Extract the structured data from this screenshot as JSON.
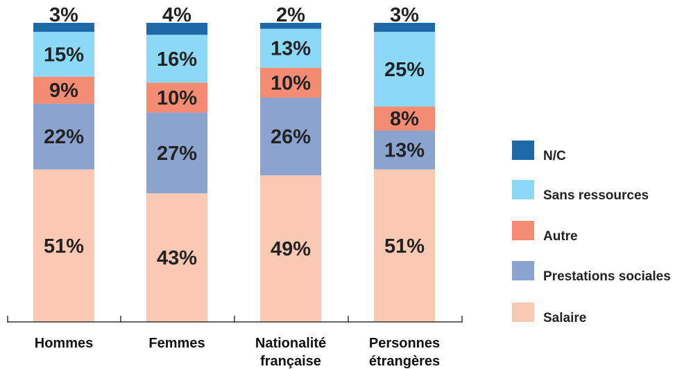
{
  "chart_data": {
    "type": "bar",
    "stacked": true,
    "percent": true,
    "categories": [
      [
        "Hommes"
      ],
      [
        "Femmes"
      ],
      [
        "Nationalité",
        "française"
      ],
      [
        "Personnes",
        "étrangères"
      ]
    ],
    "series": [
      {
        "name": "Salaire",
        "color": "#fbc8b3",
        "values": [
          51,
          43,
          49,
          51
        ]
      },
      {
        "name": "Prestations sociales",
        "color": "#8ba4cf",
        "values": [
          22,
          27,
          26,
          13
        ]
      },
      {
        "name": "Autre",
        "color": "#f48b73",
        "values": [
          9,
          10,
          10,
          8
        ]
      },
      {
        "name": "Sans ressources",
        "color": "#8bd8f7",
        "values": [
          15,
          16,
          13,
          25
        ]
      },
      {
        "name": "N/C",
        "color": "#1e6aa8",
        "values": [
          3,
          4,
          2,
          3
        ]
      }
    ],
    "legend_order": [
      "N/C",
      "Sans ressources",
      "Autre",
      "Prestations sociales",
      "Salaire"
    ],
    "legend_position": "right",
    "ylim": [
      0,
      100
    ],
    "grid": false
  }
}
